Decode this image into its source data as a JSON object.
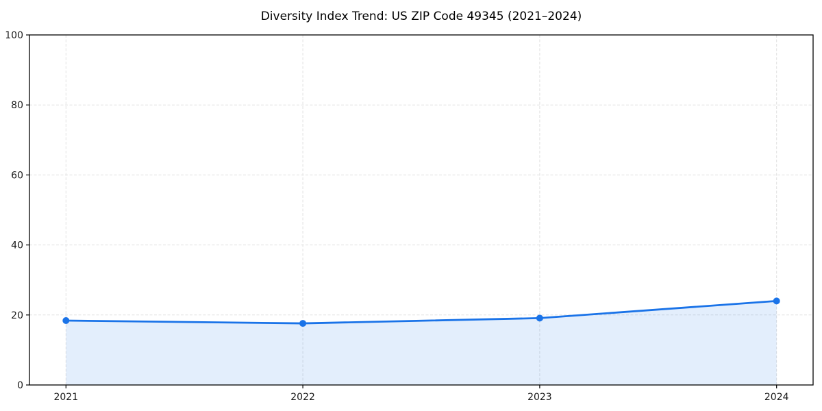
{
  "page": {
    "background_color": "#ffffff"
  },
  "chart_data": {
    "type": "line",
    "title": "Diversity Index Trend: US ZIP Code 49345 (2021–2024)",
    "x": [
      2021,
      2022,
      2023,
      2024
    ],
    "x_tick_labels": [
      "2021",
      "2022",
      "2023",
      "2024"
    ],
    "series": [
      {
        "name": "Diversity Index",
        "values": [
          18.4,
          17.6,
          19.1,
          24.0
        ]
      }
    ],
    "xlabel": "",
    "ylabel": "",
    "ylim": [
      0,
      100
    ],
    "yticks": [
      0,
      20,
      40,
      60,
      80,
      100
    ],
    "ytick_labels": [
      "0",
      "20",
      "40",
      "60",
      "80",
      "100"
    ],
    "grid": true,
    "grid_style": "dashed",
    "legend_position": "none",
    "area_fill_under_line": true,
    "colors": {
      "line": "#1a73e8",
      "marker": "#1a73e8",
      "area_fill": "#1a73e8",
      "area_fill_opacity": 0.12,
      "grid": "#e0e0e0",
      "axis": "#000000",
      "tick_label": "#1a1a1a",
      "title": "#000000"
    }
  }
}
